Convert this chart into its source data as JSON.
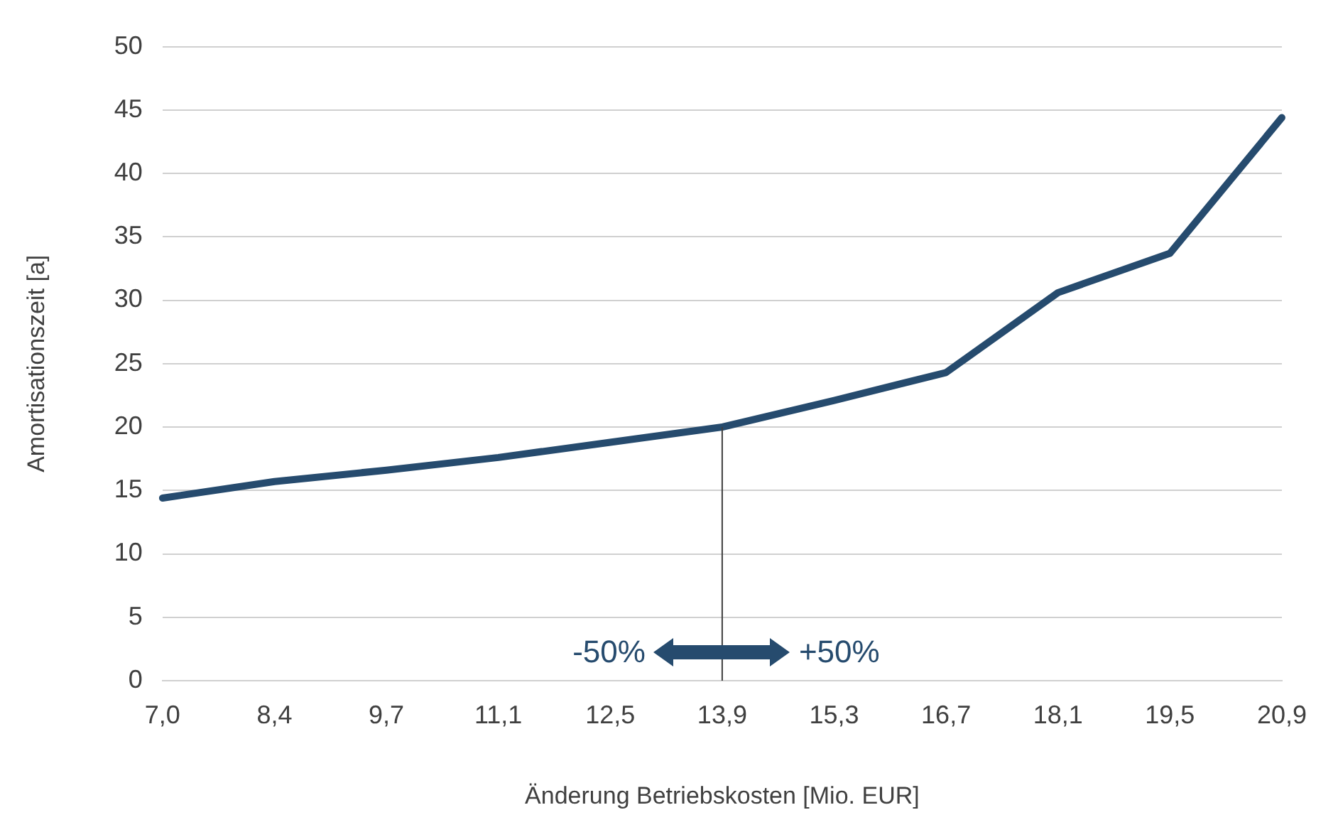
{
  "chart_data": {
    "type": "line",
    "xlabel": "Änderung Betriebskosten [Mio. EUR]",
    "ylabel": "Amortisationszeit [a]",
    "categories": [
      "7,0",
      "8,4",
      "9,7",
      "11,1",
      "12,5",
      "13,9",
      "15,3",
      "16,7",
      "18,1",
      "19,5",
      "20,9"
    ],
    "series": [
      {
        "color": "#264b6e",
        "values": [
          14.4,
          15.7,
          16.6,
          17.6,
          18.8,
          20.0,
          22.1,
          24.3,
          30.6,
          33.7,
          44.4
        ]
      }
    ],
    "ylim": [
      0,
      50
    ],
    "yticks": [
      0,
      5,
      10,
      15,
      20,
      25,
      30,
      35,
      40,
      45,
      50
    ],
    "ref_lines": [
      {
        "axis": "x",
        "value": "13,9",
        "color": "#404040"
      }
    ],
    "annotations": [
      "-50%",
      "+50%"
    ],
    "grid": "y",
    "legend": false,
    "marker": "none",
    "line_style": "solid"
  }
}
